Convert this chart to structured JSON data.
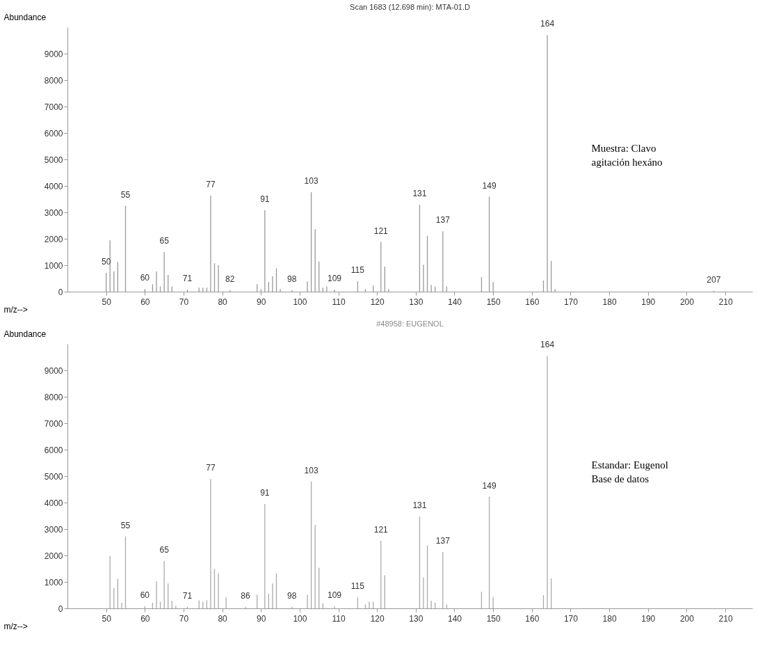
{
  "chart_data": [
    {
      "type": "bar",
      "title": "Scan 1683 (12.698 min): MTA-01.D",
      "xlabel": "m/z-->",
      "ylabel": "Abundance",
      "color": "#999999",
      "grid": false,
      "x": [
        50,
        51,
        52,
        53,
        55,
        60,
        62,
        63,
        64,
        65,
        66,
        67,
        71,
        74,
        75,
        76,
        77,
        78,
        79,
        82,
        89,
        90,
        91,
        92,
        93,
        94,
        95,
        98,
        102,
        103,
        104,
        105,
        106,
        107,
        109,
        115,
        117,
        119,
        121,
        122,
        123,
        131,
        132,
        133,
        134,
        135,
        137,
        138,
        147,
        149,
        150,
        163,
        164,
        165,
        166,
        207
      ],
      "values": [
        710,
        1940,
        760,
        1120,
        3250,
        100,
        280,
        760,
        200,
        1500,
        630,
        200,
        80,
        150,
        150,
        150,
        3630,
        1070,
        1000,
        60,
        280,
        100,
        3080,
        370,
        580,
        880,
        100,
        60,
        390,
        3760,
        2360,
        1140,
        150,
        200,
        80,
        390,
        100,
        240,
        1880,
        950,
        100,
        3290,
        1010,
        2110,
        250,
        200,
        2280,
        200,
        550,
        3590,
        360,
        420,
        9700,
        1160,
        100,
        30
      ],
      "xlim": [
        40,
        217
      ],
      "xticks": [
        50,
        60,
        70,
        80,
        90,
        100,
        110,
        120,
        130,
        140,
        150,
        160,
        170,
        180,
        190,
        200,
        210
      ],
      "ylim": [
        0,
        10000
      ],
      "yticks": [
        0,
        1000,
        2000,
        3000,
        4000,
        5000,
        6000,
        7000,
        8000,
        9000
      ],
      "annotations": [
        "Muestra: Clavo\nagitación hexáno",
        {
          "text": "50",
          "x": 50,
          "y": 710
        },
        {
          "text": "55",
          "x": 55,
          "y": 3250
        },
        {
          "text": "60",
          "x": 60,
          "y": 100
        },
        {
          "text": "65",
          "x": 65,
          "y": 1500
        },
        {
          "text": "71",
          "x": 71,
          "y": 80
        },
        {
          "text": "77",
          "x": 77,
          "y": 3630
        },
        {
          "text": "82",
          "x": 82,
          "y": 60
        },
        {
          "text": "91",
          "x": 91,
          "y": 3080
        },
        {
          "text": "98",
          "x": 98,
          "y": 60
        },
        {
          "text": "103",
          "x": 103,
          "y": 3760
        },
        {
          "text": "109",
          "x": 109,
          "y": 80
        },
        {
          "text": "115",
          "x": 115,
          "y": 390
        },
        {
          "text": "121",
          "x": 121,
          "y": 1880
        },
        {
          "text": "131",
          "x": 131,
          "y": 3290
        },
        {
          "text": "137",
          "x": 137,
          "y": 2280
        },
        {
          "text": "149",
          "x": 149,
          "y": 3590
        },
        {
          "text": "164",
          "x": 164,
          "y": 9700
        },
        {
          "text": "207",
          "x": 207,
          "y": 30
        }
      ]
    },
    {
      "type": "bar",
      "title": "#48958: EUGENOL",
      "xlabel": "m/z-->",
      "ylabel": "Abundance",
      "color": "#aaaaaa",
      "grid": false,
      "x": [
        51,
        52,
        53,
        54,
        55,
        60,
        62,
        63,
        64,
        65,
        66,
        67,
        68,
        71,
        74,
        75,
        76,
        77,
        78,
        79,
        81,
        86,
        89,
        91,
        92,
        93,
        94,
        98,
        102,
        103,
        104,
        105,
        106,
        109,
        115,
        117,
        118,
        119,
        121,
        122,
        131,
        132,
        133,
        134,
        135,
        137,
        138,
        147,
        149,
        150,
        163,
        164,
        165
      ],
      "values": [
        1980,
        770,
        1120,
        210,
        2720,
        80,
        210,
        1020,
        250,
        1790,
        940,
        280,
        100,
        60,
        300,
        250,
        300,
        4890,
        1490,
        1330,
        420,
        60,
        510,
        3950,
        550,
        940,
        1320,
        60,
        510,
        4800,
        3150,
        1530,
        200,
        80,
        420,
        150,
        250,
        250,
        2550,
        1250,
        3470,
        1170,
        2380,
        290,
        210,
        2130,
        150,
        630,
        4220,
        420,
        500,
        9540,
        1130
      ],
      "xlim": [
        40,
        217
      ],
      "xticks": [
        50,
        60,
        70,
        80,
        90,
        100,
        110,
        120,
        130,
        140,
        150,
        160,
        170,
        180,
        190,
        200,
        210
      ],
      "ylim": [
        0,
        10000
      ],
      "yticks": [
        0,
        1000,
        2000,
        3000,
        4000,
        5000,
        6000,
        7000,
        8000,
        9000
      ],
      "annotations": [
        "Estandar: Eugenol\nBase de datos",
        {
          "text": "55",
          "x": 55,
          "y": 2720
        },
        {
          "text": "60",
          "x": 60,
          "y": 80
        },
        {
          "text": "65",
          "x": 65,
          "y": 1790
        },
        {
          "text": "71",
          "x": 71,
          "y": 60
        },
        {
          "text": "77",
          "x": 77,
          "y": 4890
        },
        {
          "text": "86",
          "x": 86,
          "y": 60
        },
        {
          "text": "91",
          "x": 91,
          "y": 3950
        },
        {
          "text": "98",
          "x": 98,
          "y": 60
        },
        {
          "text": "103",
          "x": 103,
          "y": 4800
        },
        {
          "text": "109",
          "x": 109,
          "y": 80
        },
        {
          "text": "115",
          "x": 115,
          "y": 420
        },
        {
          "text": "121",
          "x": 121,
          "y": 2550
        },
        {
          "text": "131",
          "x": 131,
          "y": 3470
        },
        {
          "text": "137",
          "x": 137,
          "y": 2130
        },
        {
          "text": "149",
          "x": 149,
          "y": 4220
        },
        {
          "text": "164",
          "x": 164,
          "y": 9540
        }
      ]
    }
  ]
}
